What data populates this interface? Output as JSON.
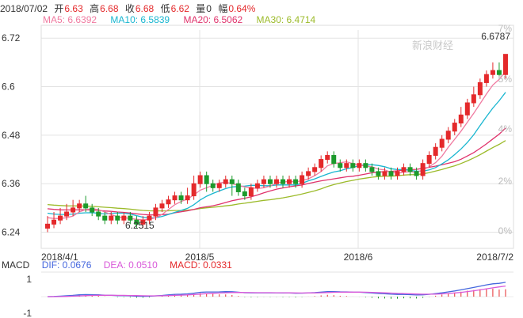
{
  "header": {
    "date": "2018/07/02",
    "open_label": "开",
    "open": "6.63",
    "high_label": "高",
    "high": "6.68",
    "close_label": "收",
    "close": "6.68",
    "low_label": "低",
    "low": "6.62",
    "volume_label": "量",
    "volume": "0",
    "change_label": "幅",
    "change": "0.64%"
  },
  "ma_legend": {
    "ma5": "MA5: 6.6392",
    "ma10": "MA10: 6.5839",
    "ma20": "MA20: 6.5062",
    "ma30": "MA30: 6.4714"
  },
  "macd_legend": {
    "name": "MACD",
    "dif": "DIF: 0.0676",
    "dea": "DEA: 0.0510",
    "macd": "MACD: 0.0331"
  },
  "watermark": "新浪财经",
  "colors": {
    "up": "#e4292b",
    "down": "#1c9a2c",
    "ma5": "#f07aa0",
    "ma10": "#19b6d0",
    "ma20": "#e0336c",
    "ma30": "#9cbb2a",
    "dif": "#4466dd",
    "dea": "#d958d9",
    "grid": "#e3e3e3"
  },
  "chart_data": {
    "type": "candlestick",
    "price_range": [
      6.2,
      6.74
    ],
    "y_ticks": [
      "6.72",
      "6.6",
      "6.48",
      "6.36",
      "6.24"
    ],
    "right_ticks": [
      "7%",
      "5%",
      "4%",
      "2%",
      "0%"
    ],
    "x_labels": [
      "2018/4/1",
      "2018/5",
      "2018/6",
      "2018/7/2"
    ],
    "annotations": {
      "max": "6.6787",
      "min": "6.2515"
    },
    "macd_y_ticks": [
      "1",
      "-1"
    ],
    "candles": [
      [
        6.25,
        6.26,
        6.28,
        6.24
      ],
      [
        6.26,
        6.27,
        6.29,
        6.25
      ],
      [
        6.27,
        6.28,
        6.3,
        6.26
      ],
      [
        6.28,
        6.29,
        6.31,
        6.27
      ],
      [
        6.29,
        6.3,
        6.32,
        6.28
      ],
      [
        6.3,
        6.31,
        6.32,
        6.29
      ],
      [
        6.31,
        6.3,
        6.33,
        6.29
      ],
      [
        6.3,
        6.29,
        6.31,
        6.28
      ],
      [
        6.29,
        6.28,
        6.3,
        6.27
      ],
      [
        6.28,
        6.27,
        6.29,
        6.26
      ],
      [
        6.27,
        6.28,
        6.29,
        6.26
      ],
      [
        6.28,
        6.27,
        6.29,
        6.26
      ],
      [
        6.27,
        6.28,
        6.29,
        6.26
      ],
      [
        6.28,
        6.27,
        6.29,
        6.26
      ],
      [
        6.27,
        6.26,
        6.28,
        6.25
      ],
      [
        6.26,
        6.27,
        6.28,
        6.25
      ],
      [
        6.27,
        6.28,
        6.29,
        6.26
      ],
      [
        6.28,
        6.3,
        6.31,
        6.27
      ],
      [
        6.3,
        6.31,
        6.32,
        6.29
      ],
      [
        6.31,
        6.32,
        6.33,
        6.3
      ],
      [
        6.32,
        6.33,
        6.34,
        6.31
      ],
      [
        6.33,
        6.32,
        6.34,
        6.31
      ],
      [
        6.32,
        6.33,
        6.35,
        6.31
      ],
      [
        6.33,
        6.36,
        6.38,
        6.32
      ],
      [
        6.36,
        6.38,
        6.39,
        6.35
      ],
      [
        6.38,
        6.36,
        6.39,
        6.34
      ],
      [
        6.36,
        6.35,
        6.37,
        6.34
      ],
      [
        6.35,
        6.36,
        6.37,
        6.34
      ],
      [
        6.36,
        6.37,
        6.38,
        6.35
      ],
      [
        6.37,
        6.36,
        6.38,
        6.33
      ],
      [
        6.36,
        6.34,
        6.37,
        6.33
      ],
      [
        6.34,
        6.33,
        6.35,
        6.32
      ],
      [
        6.33,
        6.35,
        6.36,
        6.32
      ],
      [
        6.35,
        6.36,
        6.37,
        6.34
      ],
      [
        6.36,
        6.37,
        6.38,
        6.35
      ],
      [
        6.37,
        6.36,
        6.38,
        6.35
      ],
      [
        6.36,
        6.37,
        6.38,
        6.35
      ],
      [
        6.37,
        6.36,
        6.38,
        6.35
      ],
      [
        6.36,
        6.37,
        6.38,
        6.35
      ],
      [
        6.37,
        6.36,
        6.38,
        6.35
      ],
      [
        6.36,
        6.38,
        6.39,
        6.35
      ],
      [
        6.38,
        6.39,
        6.4,
        6.37
      ],
      [
        6.39,
        6.4,
        6.41,
        6.38
      ],
      [
        6.4,
        6.42,
        6.43,
        6.39
      ],
      [
        6.42,
        6.43,
        6.44,
        6.41
      ],
      [
        6.43,
        6.41,
        6.44,
        6.4
      ],
      [
        6.41,
        6.4,
        6.42,
        6.39
      ],
      [
        6.4,
        6.41,
        6.42,
        6.39
      ],
      [
        6.41,
        6.4,
        6.42,
        6.39
      ],
      [
        6.4,
        6.41,
        6.42,
        6.39
      ],
      [
        6.41,
        6.4,
        6.42,
        6.39
      ],
      [
        6.4,
        6.39,
        6.41,
        6.38
      ],
      [
        6.39,
        6.38,
        6.4,
        6.37
      ],
      [
        6.38,
        6.39,
        6.4,
        6.37
      ],
      [
        6.39,
        6.38,
        6.4,
        6.37
      ],
      [
        6.38,
        6.39,
        6.4,
        6.37
      ],
      [
        6.39,
        6.4,
        6.41,
        6.38
      ],
      [
        6.4,
        6.39,
        6.41,
        6.38
      ],
      [
        6.39,
        6.38,
        6.4,
        6.37
      ],
      [
        6.38,
        6.41,
        6.42,
        6.37
      ],
      [
        6.41,
        6.43,
        6.44,
        6.4
      ],
      [
        6.43,
        6.45,
        6.46,
        6.42
      ],
      [
        6.45,
        6.47,
        6.48,
        6.44
      ],
      [
        6.47,
        6.49,
        6.5,
        6.46
      ],
      [
        6.49,
        6.51,
        6.52,
        6.48
      ],
      [
        6.51,
        6.53,
        6.55,
        6.5
      ],
      [
        6.53,
        6.56,
        6.57,
        6.52
      ],
      [
        6.56,
        6.58,
        6.6,
        6.55
      ],
      [
        6.58,
        6.61,
        6.62,
        6.57
      ],
      [
        6.61,
        6.63,
        6.64,
        6.6
      ],
      [
        6.63,
        6.64,
        6.66,
        6.62
      ],
      [
        6.64,
        6.63,
        6.66,
        6.62
      ],
      [
        6.63,
        6.68,
        6.68,
        6.62
      ]
    ]
  }
}
